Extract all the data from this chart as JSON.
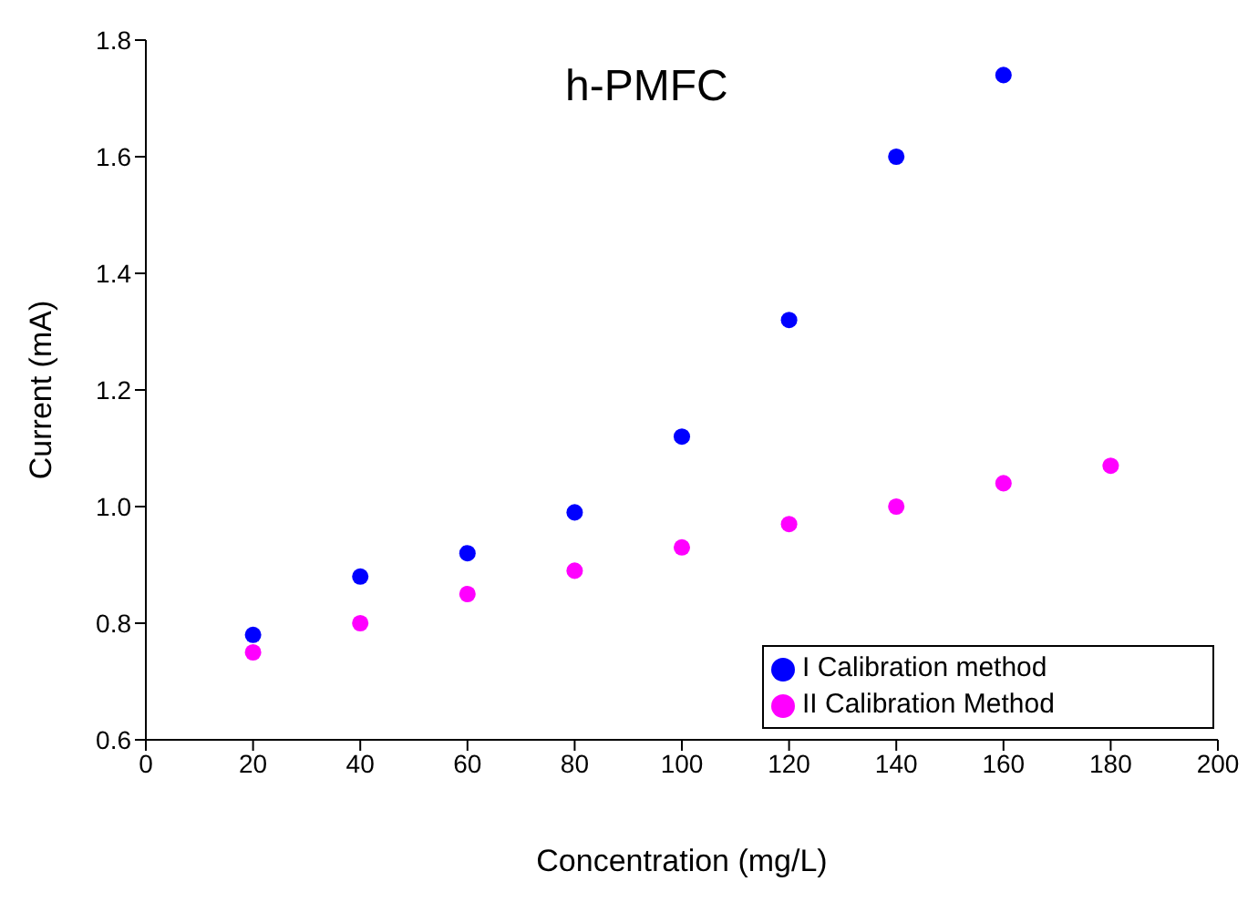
{
  "chart_data": {
    "type": "scatter",
    "title": "h-PMFC",
    "xlabel": "Concentration (mg/L)",
    "ylabel": "Current (mA)",
    "xlim": [
      0,
      200
    ],
    "xticks": [
      0,
      20,
      40,
      60,
      80,
      100,
      120,
      140,
      160,
      180,
      200
    ],
    "ylim": [
      0.6,
      1.8
    ],
    "yticks": [
      {
        "value": 0.6,
        "label": "0.6"
      },
      {
        "value": 0.8,
        "label": "0.8"
      },
      {
        "value": 1.0,
        "label": "1.0"
      },
      {
        "value": 1.2,
        "label": "1.2"
      },
      {
        "value": 1.4,
        "label": "1.4"
      },
      {
        "value": 1.6,
        "label": "1.6"
      },
      {
        "value": 1.8,
        "label": "1.8"
      }
    ],
    "grid": false,
    "legend": "bottom right",
    "marker": "circle",
    "series": [
      {
        "name": "I Calibration method",
        "color": "#0000ff",
        "x": [
          20,
          40,
          60,
          80,
          100,
          120,
          140,
          160
        ],
        "values": [
          0.78,
          0.88,
          0.92,
          0.99,
          1.12,
          1.32,
          1.6,
          1.74
        ]
      },
      {
        "name": "II Calibration Method",
        "color": "#ff00ff",
        "x": [
          20,
          40,
          60,
          80,
          100,
          120,
          140,
          160,
          180
        ],
        "values": [
          0.75,
          0.8,
          0.85,
          0.89,
          0.93,
          0.97,
          1.0,
          1.04,
          1.07
        ]
      }
    ]
  }
}
